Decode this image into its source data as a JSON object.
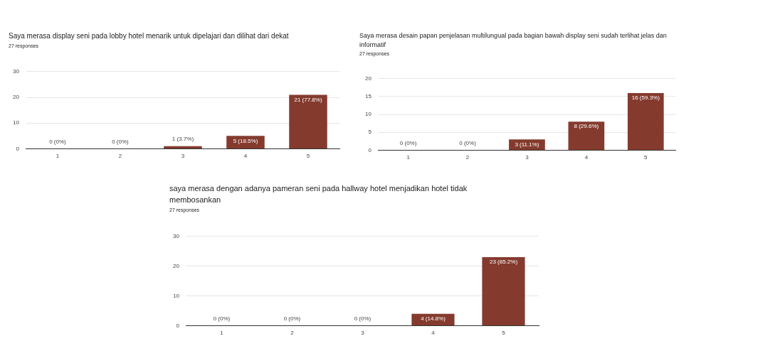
{
  "chart_data": [
    {
      "type": "bar",
      "title": "Saya merasa display seni pada lobby hotel menarik untuk dipelajari dan dilihat dari dekat",
      "subtitle": "27 responses",
      "categories": [
        "1",
        "2",
        "3",
        "4",
        "5"
      ],
      "values": [
        0,
        0,
        1,
        5,
        21
      ],
      "color": "#843b2e",
      "value_labels": [
        "0 (0%)",
        "0 (0%)",
        "1 (3.7%)",
        "5 (18.5%)",
        "21 (77.8%)"
      ],
      "ylim": [
        0,
        30
      ],
      "yticks": [
        0,
        10,
        20,
        30
      ],
      "grid": "y"
    },
    {
      "type": "bar",
      "title": "Saya merasa desain papan penjelasan multilungual pada bagian bawah display seni sudah terlihat jelas dan informatif",
      "subtitle": "27 responses",
      "categories": [
        "1",
        "2",
        "3",
        "4",
        "5"
      ],
      "values": [
        0,
        0,
        3,
        8,
        16
      ],
      "color": "#843b2e",
      "value_labels": [
        "0 (0%)",
        "0 (0%)",
        "3 (11.1%)",
        "8 (29.6%)",
        "16 (59.3%)"
      ],
      "ylim": [
        0,
        20
      ],
      "yticks": [
        0,
        5,
        10,
        15,
        20
      ],
      "grid": "y"
    },
    {
      "type": "bar",
      "title": "saya merasa dengan adanya pameran seni pada hallway hotel menjadikan hotel tidak membosankan",
      "subtitle": "27 responses",
      "categories": [
        "1",
        "2",
        "3",
        "4",
        "5"
      ],
      "values": [
        0,
        0,
        0,
        4,
        23
      ],
      "color": "#843b2e",
      "value_labels": [
        "0 (0%)",
        "0 (0%)",
        "0 (0%)",
        "4 (14.8%)",
        "23 (85.2%)"
      ],
      "ylim": [
        0,
        30
      ],
      "yticks": [
        0,
        10,
        20,
        30
      ],
      "grid": "y"
    }
  ]
}
